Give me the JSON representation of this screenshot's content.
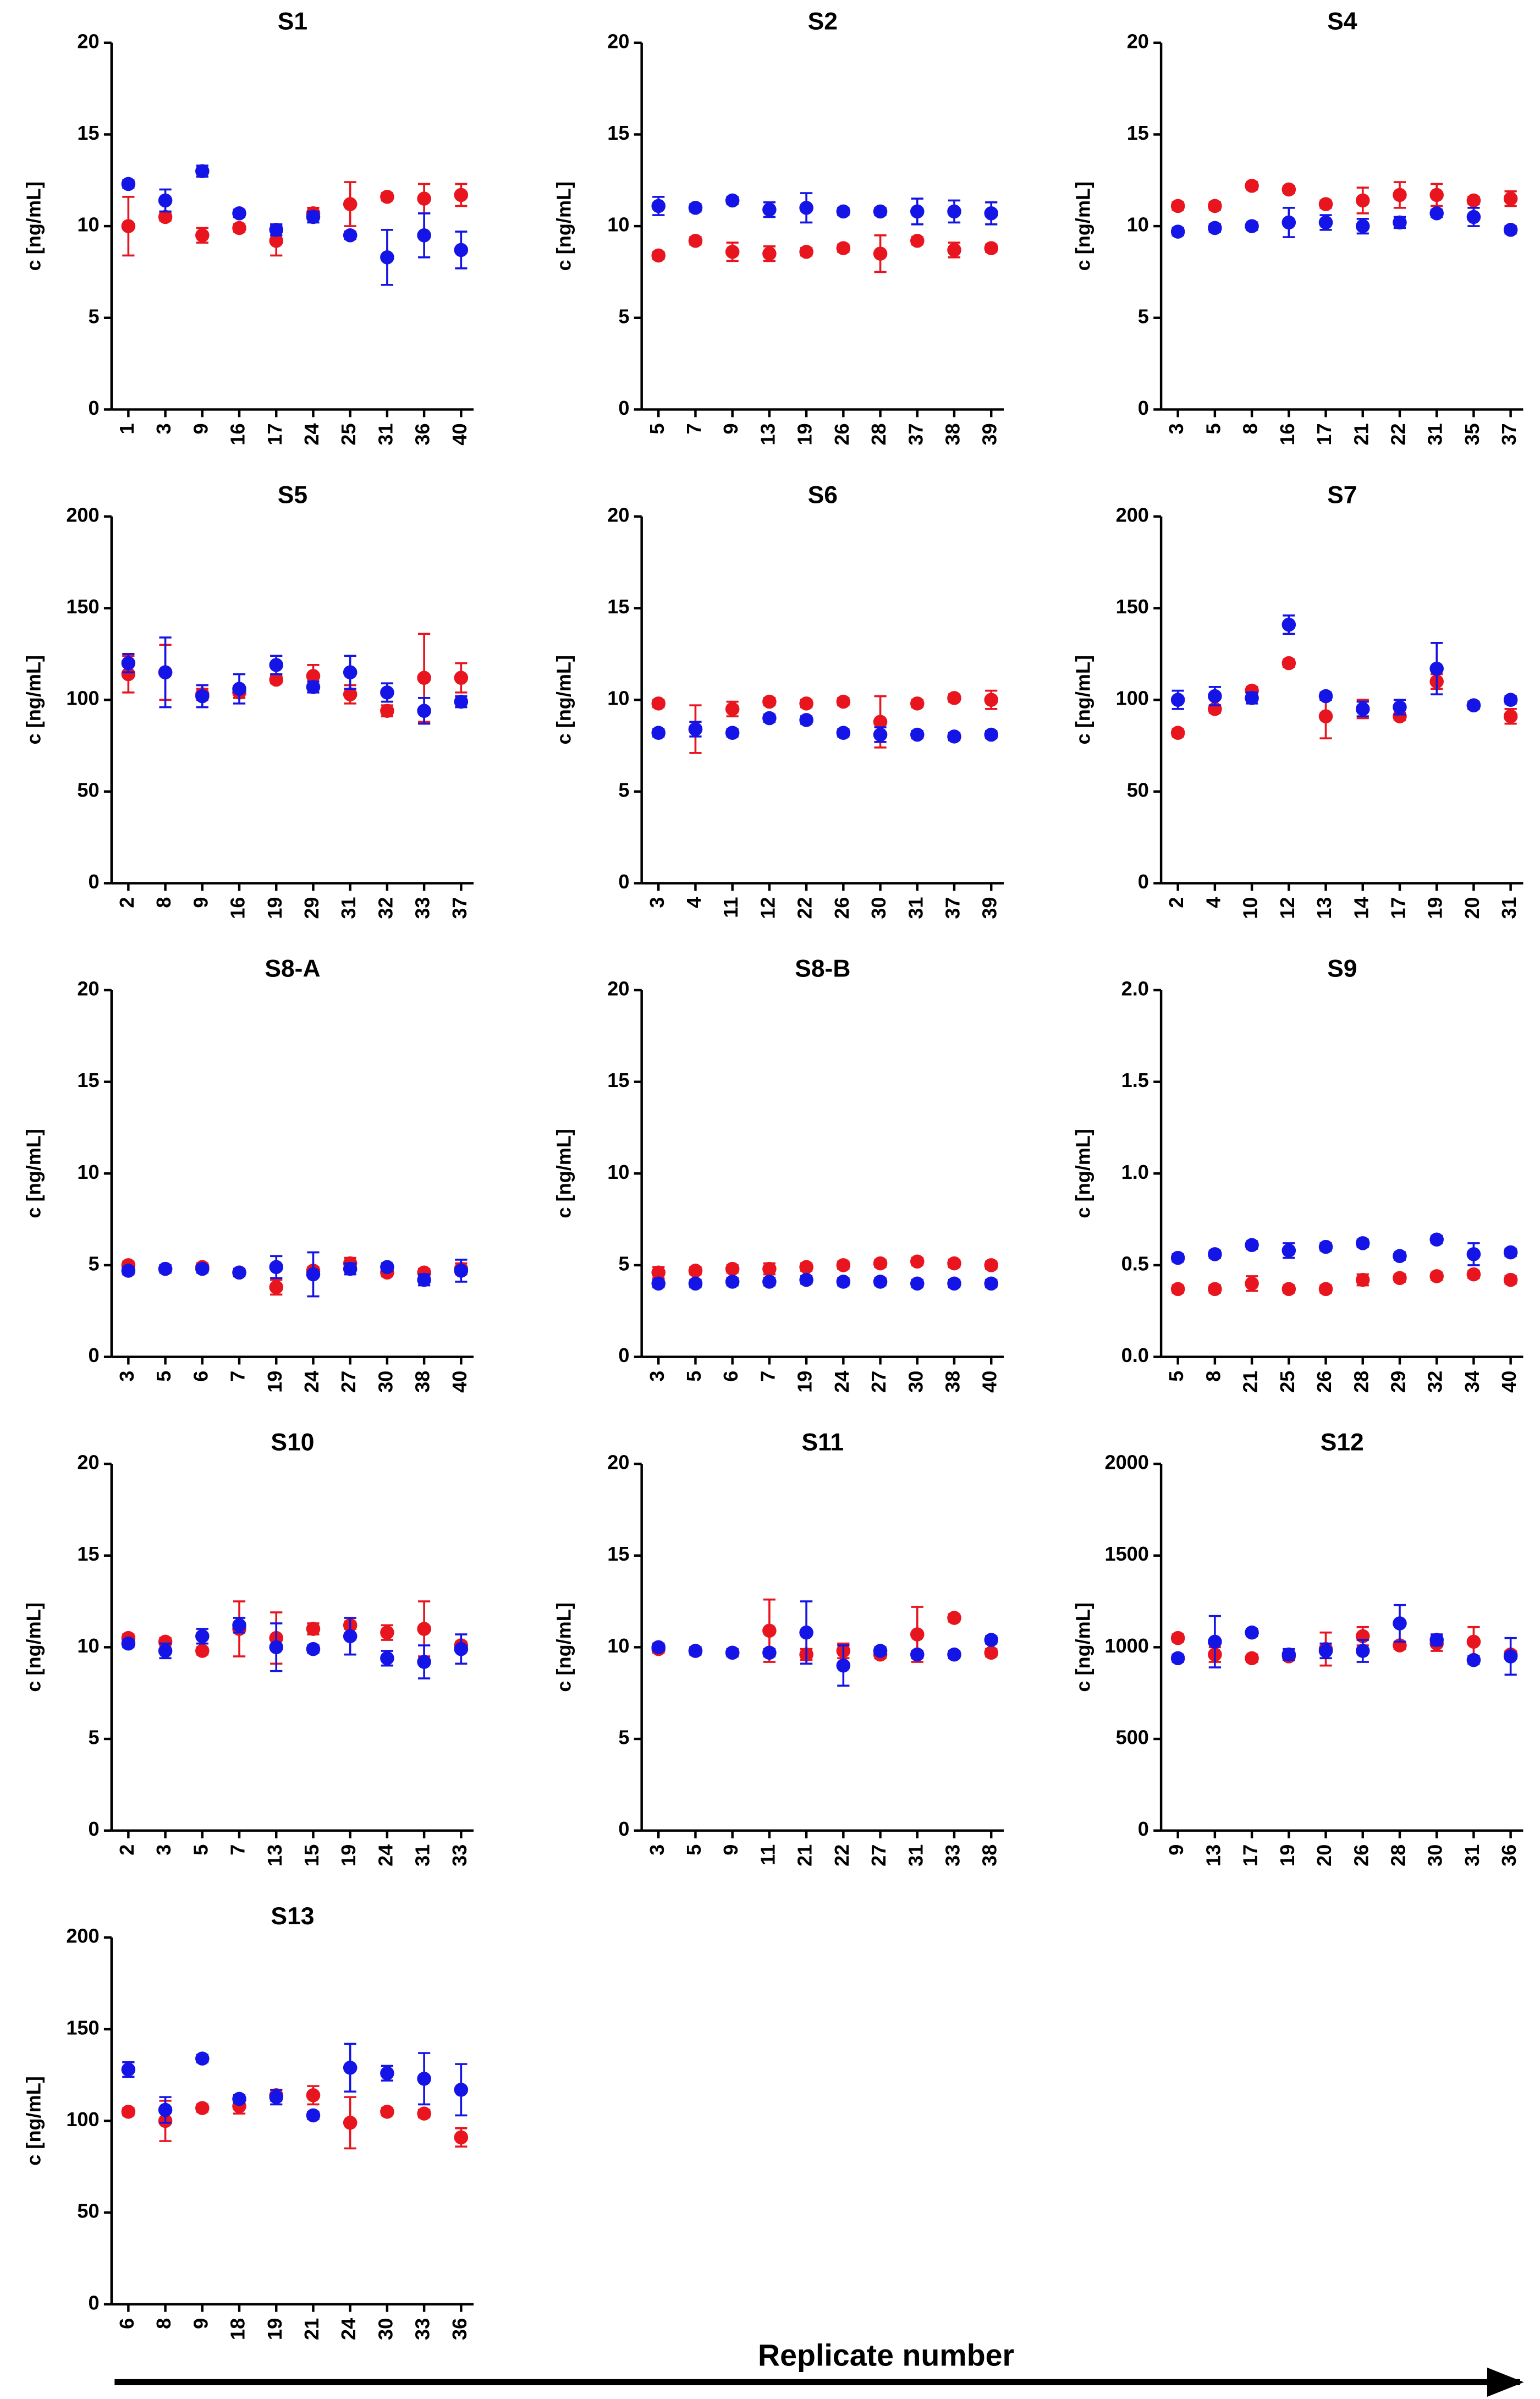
{
  "x_axis_label": "Replicate number",
  "chart_data": [
    {
      "type": "scatter",
      "title": "S1",
      "ylabel": "c [ng/mL]",
      "categories": [
        "1",
        "3",
        "9",
        "16",
        "17",
        "24",
        "25",
        "31",
        "36",
        "40"
      ],
      "ylim": [
        0,
        20
      ],
      "yticks": [
        0,
        5,
        10,
        15,
        20
      ],
      "series": [
        {
          "color": "#e8141e",
          "values": [
            10.0,
            10.5,
            9.5,
            9.9,
            9.2,
            10.7,
            11.2,
            11.6,
            11.5,
            11.7
          ],
          "errors": [
            1.6,
            0.2,
            0.4,
            0.2,
            0.8,
            0.3,
            1.2,
            0.2,
            0.8,
            0.6
          ]
        },
        {
          "color": "#1414e6",
          "values": [
            12.3,
            11.4,
            13.0,
            10.7,
            9.8,
            10.5,
            9.5,
            8.3,
            9.5,
            8.7
          ],
          "errors": [
            0.2,
            0.6,
            0.3,
            0.2,
            0.3,
            0.3,
            0.2,
            1.5,
            1.2,
            1.0
          ]
        }
      ]
    },
    {
      "type": "scatter",
      "title": "S2",
      "ylabel": "c [ng/mL]",
      "categories": [
        "5",
        "7",
        "9",
        "13",
        "19",
        "26",
        "28",
        "37",
        "38",
        "39"
      ],
      "ylim": [
        0,
        20
      ],
      "yticks": [
        0,
        5,
        10,
        15,
        20
      ],
      "series": [
        {
          "color": "#e8141e",
          "values": [
            8.4,
            9.2,
            8.6,
            8.5,
            8.6,
            8.8,
            8.5,
            9.2,
            8.7,
            8.8
          ],
          "errors": [
            0.2,
            0.2,
            0.5,
            0.4,
            0.2,
            0.2,
            1.0,
            0.2,
            0.4,
            0.2
          ]
        },
        {
          "color": "#1414e6",
          "values": [
            11.1,
            11.0,
            11.4,
            10.9,
            11.0,
            10.8,
            10.8,
            10.8,
            10.8,
            10.7
          ],
          "errors": [
            0.5,
            0.2,
            0.2,
            0.4,
            0.8,
            0.2,
            0.2,
            0.7,
            0.6,
            0.6
          ]
        }
      ]
    },
    {
      "type": "scatter",
      "title": "S4",
      "ylabel": "c [ng/mL]",
      "categories": [
        "3",
        "5",
        "8",
        "16",
        "17",
        "21",
        "22",
        "31",
        "35",
        "37"
      ],
      "ylim": [
        0,
        20
      ],
      "yticks": [
        0,
        5,
        10,
        15,
        20
      ],
      "series": [
        {
          "color": "#e8141e",
          "values": [
            11.1,
            11.1,
            12.2,
            12.0,
            11.2,
            11.4,
            11.7,
            11.7,
            11.4,
            11.5
          ],
          "errors": [
            0.2,
            0.2,
            0.2,
            0.2,
            0.2,
            0.7,
            0.7,
            0.6,
            0.2,
            0.4
          ]
        },
        {
          "color": "#1414e6",
          "values": [
            9.7,
            9.9,
            10.0,
            10.2,
            10.2,
            10.0,
            10.2,
            10.7,
            10.5,
            9.8
          ],
          "errors": [
            0.2,
            0.2,
            0.2,
            0.8,
            0.4,
            0.4,
            0.3,
            0.2,
            0.5,
            0.2
          ]
        }
      ]
    },
    {
      "type": "scatter",
      "title": "S5",
      "ylabel": "c [ng/mL]",
      "categories": [
        "2",
        "8",
        "9",
        "16",
        "19",
        "29",
        "31",
        "32",
        "33",
        "37"
      ],
      "ylim": [
        0,
        200
      ],
      "yticks": [
        0,
        50,
        100,
        150,
        200
      ],
      "series": [
        {
          "color": "#e8141e",
          "values": [
            114,
            115,
            103,
            104,
            111,
            113,
            103,
            94,
            112,
            112
          ],
          "errors": [
            10,
            15,
            3,
            3,
            2,
            6,
            5,
            3,
            24,
            8
          ]
        },
        {
          "color": "#1414e6",
          "values": [
            120,
            115,
            102,
            106,
            119,
            107,
            115,
            104,
            94,
            99
          ],
          "errors": [
            5,
            19,
            6,
            8,
            5,
            3,
            9,
            5,
            7,
            3
          ]
        }
      ]
    },
    {
      "type": "scatter",
      "title": "S6",
      "ylabel": "c [ng/mL]",
      "categories": [
        "3",
        "4",
        "11",
        "12",
        "22",
        "26",
        "30",
        "31",
        "37",
        "39"
      ],
      "ylim": [
        0,
        20
      ],
      "yticks": [
        0,
        5,
        10,
        15,
        20
      ],
      "series": [
        {
          "color": "#e8141e",
          "values": [
            9.8,
            8.4,
            9.5,
            9.9,
            9.8,
            9.9,
            8.8,
            9.8,
            10.1,
            10.0
          ],
          "errors": [
            0.2,
            1.3,
            0.4,
            0.2,
            0.2,
            0.2,
            1.4,
            0.2,
            0.2,
            0.5
          ]
        },
        {
          "color": "#1414e6",
          "values": [
            8.2,
            8.4,
            8.2,
            9.0,
            8.9,
            8.2,
            8.1,
            8.1,
            8.0,
            8.1
          ],
          "errors": [
            0.2,
            0.4,
            0.2,
            0.2,
            0.2,
            0.2,
            0.4,
            0.2,
            0.2,
            0.2
          ]
        }
      ]
    },
    {
      "type": "scatter",
      "title": "S7",
      "ylabel": "c [ng/mL]",
      "categories": [
        "2",
        "4",
        "10",
        "12",
        "13",
        "14",
        "17",
        "19",
        "20",
        "31"
      ],
      "ylim": [
        0,
        200
      ],
      "yticks": [
        0,
        50,
        100,
        150,
        200
      ],
      "series": [
        {
          "color": "#e8141e",
          "values": [
            82,
            95,
            105,
            120,
            91,
            95,
            91,
            110,
            97,
            91
          ],
          "errors": [
            2,
            2,
            2,
            2,
            12,
            5,
            2,
            4,
            2,
            4
          ]
        },
        {
          "color": "#1414e6",
          "values": [
            100,
            102,
            101,
            141,
            102,
            95,
            96,
            117,
            97,
            100
          ],
          "errors": [
            5,
            5,
            3,
            5,
            2,
            4,
            4,
            14,
            2,
            2
          ]
        }
      ]
    },
    {
      "type": "scatter",
      "title": "S8-A",
      "ylabel": "c [ng/mL]",
      "categories": [
        "3",
        "5",
        "6",
        "7",
        "19",
        "24",
        "27",
        "30",
        "38",
        "40"
      ],
      "ylim": [
        0,
        20
      ],
      "yticks": [
        0,
        5,
        10,
        15,
        20
      ],
      "series": [
        {
          "color": "#e8141e",
          "values": [
            5.0,
            4.8,
            4.9,
            4.6,
            3.8,
            4.7,
            5.1,
            4.6,
            4.6,
            4.8
          ],
          "errors": [
            0.2,
            0.2,
            0.2,
            0.2,
            0.4,
            0.2,
            0.3,
            0.2,
            0.2,
            0.3
          ]
        },
        {
          "color": "#1414e6",
          "values": [
            4.7,
            4.8,
            4.8,
            4.6,
            4.9,
            4.5,
            4.8,
            4.9,
            4.2,
            4.7
          ],
          "errors": [
            0.2,
            0.2,
            0.2,
            0.2,
            0.6,
            1.2,
            0.3,
            0.2,
            0.3,
            0.6
          ]
        }
      ]
    },
    {
      "type": "scatter",
      "title": "S8-B",
      "ylabel": "c [ng/mL]",
      "categories": [
        "3",
        "5",
        "6",
        "7",
        "19",
        "24",
        "27",
        "30",
        "38",
        "40"
      ],
      "ylim": [
        0,
        20
      ],
      "yticks": [
        0,
        5,
        10,
        15,
        20
      ],
      "series": [
        {
          "color": "#e8141e",
          "values": [
            4.6,
            4.7,
            4.8,
            4.8,
            4.9,
            5.0,
            5.1,
            5.2,
            5.1,
            5.0
          ],
          "errors": [
            0.3,
            0.2,
            0.2,
            0.3,
            0.2,
            0.2,
            0.2,
            0.2,
            0.2,
            0.2
          ]
        },
        {
          "color": "#1414e6",
          "values": [
            4.0,
            4.0,
            4.1,
            4.1,
            4.2,
            4.1,
            4.1,
            4.0,
            4.0,
            4.0
          ],
          "errors": [
            0.2,
            0.2,
            0.2,
            0.2,
            0.2,
            0.2,
            0.2,
            0.2,
            0.2,
            0.2
          ]
        }
      ]
    },
    {
      "type": "scatter",
      "title": "S9",
      "ylabel": "c [ng/mL]",
      "categories": [
        "5",
        "8",
        "21",
        "25",
        "26",
        "28",
        "29",
        "32",
        "34",
        "40"
      ],
      "ylim": [
        0,
        2
      ],
      "yticks": [
        {
          "value": 0,
          "label": "0.0"
        },
        {
          "value": 0.5,
          "label": "0.5"
        },
        {
          "value": 1,
          "label": "1.0"
        },
        {
          "value": 1.5,
          "label": "1.5"
        },
        {
          "value": 2,
          "label": "2.0"
        }
      ],
      "series": [
        {
          "color": "#e8141e",
          "values": [
            0.37,
            0.37,
            0.4,
            0.37,
            0.37,
            0.42,
            0.43,
            0.44,
            0.45,
            0.42
          ],
          "errors": [
            0.02,
            0.02,
            0.04,
            0.02,
            0.02,
            0.03,
            0.02,
            0.02,
            0.02,
            0.02
          ]
        },
        {
          "color": "#1414e6",
          "values": [
            0.54,
            0.56,
            0.61,
            0.58,
            0.6,
            0.62,
            0.55,
            0.64,
            0.56,
            0.57
          ],
          "errors": [
            0.02,
            0.02,
            0.02,
            0.04,
            0.02,
            0.02,
            0.02,
            0.02,
            0.06,
            0.02
          ]
        }
      ]
    },
    {
      "type": "scatter",
      "title": "S10",
      "ylabel": "c [ng/mL]",
      "categories": [
        "2",
        "3",
        "5",
        "7",
        "13",
        "15",
        "19",
        "24",
        "31",
        "33"
      ],
      "ylim": [
        0,
        20
      ],
      "yticks": [
        0,
        5,
        10,
        15,
        20
      ],
      "series": [
        {
          "color": "#e8141e",
          "values": [
            10.5,
            10.3,
            9.8,
            11.0,
            10.5,
            11.0,
            11.2,
            10.8,
            11.0,
            10.1
          ],
          "errors": [
            0.2,
            0.2,
            0.2,
            1.5,
            1.4,
            0.3,
            0.2,
            0.4,
            1.5,
            0.2
          ]
        },
        {
          "color": "#1414e6",
          "values": [
            10.2,
            9.8,
            10.6,
            11.2,
            10.0,
            9.9,
            10.6,
            9.4,
            9.2,
            9.9
          ],
          "errors": [
            0.2,
            0.4,
            0.4,
            0.4,
            1.3,
            0.2,
            1.0,
            0.4,
            0.9,
            0.8
          ]
        }
      ]
    },
    {
      "type": "scatter",
      "title": "S11",
      "ylabel": "c [ng/mL]",
      "categories": [
        "3",
        "5",
        "9",
        "11",
        "21",
        "22",
        "27",
        "31",
        "33",
        "38"
      ],
      "ylim": [
        0,
        20
      ],
      "yticks": [
        0,
        5,
        10,
        15,
        20
      ],
      "series": [
        {
          "color": "#e8141e",
          "values": [
            9.9,
            9.8,
            9.7,
            10.9,
            9.6,
            9.8,
            9.6,
            10.7,
            11.6,
            9.7
          ],
          "errors": [
            0.2,
            0.2,
            0.2,
            1.7,
            0.3,
            0.4,
            0.2,
            1.5,
            0.2,
            0.2
          ]
        },
        {
          "color": "#1414e6",
          "values": [
            10.0,
            9.8,
            9.7,
            9.7,
            10.8,
            9.0,
            9.8,
            9.6,
            9.6,
            10.4
          ],
          "errors": [
            0.2,
            0.2,
            0.2,
            0.2,
            1.7,
            1.1,
            0.2,
            0.2,
            0.2,
            0.2
          ]
        }
      ]
    },
    {
      "type": "scatter",
      "title": "S12",
      "ylabel": "c [ng/mL]",
      "categories": [
        "9",
        "13",
        "17",
        "19",
        "20",
        "26",
        "28",
        "30",
        "31",
        "36"
      ],
      "ylim": [
        0,
        2000
      ],
      "yticks": [
        0,
        500,
        1000,
        1500,
        2000
      ],
      "series": [
        {
          "color": "#e8141e",
          "values": [
            1050,
            960,
            940,
            950,
            990,
            1060,
            1010,
            1020,
            1030,
            960
          ],
          "errors": [
            20,
            40,
            20,
            20,
            90,
            50,
            20,
            40,
            80,
            20
          ]
        },
        {
          "color": "#1414e6",
          "values": [
            940,
            1030,
            1080,
            960,
            980,
            980,
            1130,
            1040,
            930,
            950
          ],
          "errors": [
            20,
            140,
            20,
            30,
            40,
            60,
            100,
            30,
            20,
            100
          ]
        }
      ]
    },
    {
      "type": "scatter",
      "title": "S13",
      "ylabel": "c [ng/mL]",
      "categories": [
        "6",
        "8",
        "9",
        "18",
        "19",
        "21",
        "24",
        "30",
        "33",
        "36"
      ],
      "ylim": [
        0,
        200
      ],
      "yticks": [
        0,
        50,
        100,
        150,
        200
      ],
      "series": [
        {
          "color": "#e8141e",
          "values": [
            105,
            100,
            107,
            108,
            114,
            114,
            99,
            105,
            104,
            91
          ],
          "errors": [
            2,
            11,
            2,
            4,
            3,
            5,
            14,
            2,
            2,
            5
          ]
        },
        {
          "color": "#1414e6",
          "values": [
            128,
            106,
            134,
            112,
            113,
            103,
            129,
            126,
            123,
            117
          ],
          "errors": [
            4,
            7,
            2,
            2,
            4,
            2,
            13,
            4,
            14,
            14
          ]
        }
      ]
    }
  ]
}
